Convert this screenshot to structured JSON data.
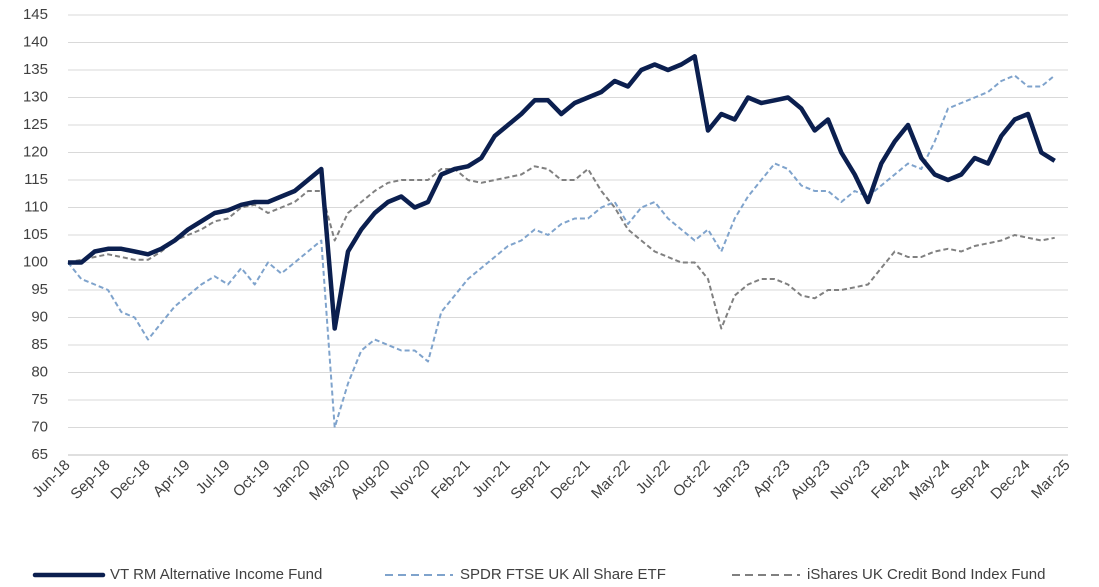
{
  "chart_data": {
    "type": "line",
    "categories": [
      "Jun-18",
      null,
      null,
      "Sep-18",
      null,
      null,
      "Dec-18",
      null,
      null,
      "Apr-19",
      null,
      null,
      "Jul-19",
      null,
      null,
      "Oct-19",
      null,
      null,
      "Jan-20",
      null,
      null,
      "May-20",
      null,
      null,
      "Aug-20",
      null,
      null,
      "Nov-20",
      null,
      null,
      "Feb-21",
      null,
      null,
      "Jun-21",
      null,
      null,
      "Sep-21",
      null,
      null,
      "Dec-21",
      null,
      null,
      "Mar-22",
      null,
      null,
      "Jul-22",
      null,
      null,
      "Oct-22",
      null,
      null,
      "Jan-23",
      null,
      null,
      "Apr-23",
      null,
      null,
      "Aug-23",
      null,
      null,
      "Nov-23",
      null,
      null,
      "Feb-24",
      null,
      null,
      "May-24",
      null,
      null,
      "Sep-24",
      null,
      null,
      "Dec-24",
      null,
      null,
      "Mar-25"
    ],
    "series": [
      {
        "name": "VT RM Alternative Income Fund",
        "color": "#0b1f4f",
        "style": "solid",
        "values": [
          100,
          100,
          102,
          102.5,
          102.5,
          102,
          101.5,
          102.5,
          104,
          106,
          107.5,
          109,
          109.5,
          110.5,
          111,
          111,
          112,
          113,
          115,
          117,
          88,
          102,
          106,
          109,
          111,
          112,
          110,
          111,
          116,
          117,
          117.5,
          119,
          123,
          125,
          127,
          129.5,
          129.5,
          127,
          129,
          130,
          131,
          133,
          132,
          135,
          136,
          135,
          136,
          137.5,
          124,
          127,
          126,
          130,
          129,
          129.5,
          130,
          128,
          124,
          126,
          120,
          116,
          111,
          118,
          122,
          125,
          119,
          116,
          115,
          116,
          119,
          118,
          123,
          126,
          127,
          120,
          118.5,
          null
        ]
      },
      {
        "name": "SPDR FTSE UK All Share ETF",
        "color": "#7fa3cc",
        "style": "dashed",
        "values": [
          100,
          97,
          96,
          95,
          91,
          90,
          86,
          89,
          92,
          94,
          96,
          97.5,
          96,
          99,
          96,
          100,
          98,
          100,
          102,
          104,
          70,
          78,
          84,
          86,
          85,
          84,
          84,
          82,
          91,
          94,
          97,
          99,
          101,
          103,
          104,
          106,
          105,
          107,
          108,
          108,
          110,
          111,
          107,
          110,
          111,
          108,
          106,
          104,
          106,
          102,
          108,
          112,
          115,
          118,
          117,
          114,
          113,
          113,
          111,
          113,
          112,
          114,
          116,
          118,
          117,
          122,
          128,
          129,
          130,
          131,
          133,
          134,
          132,
          132,
          134,
          null
        ]
      },
      {
        "name": "iShares UK Credit Bond Index Fund",
        "color": "#808080",
        "style": "dashed",
        "values": [
          100,
          100.5,
          101,
          101.5,
          101,
          100.5,
          100.5,
          102,
          104,
          105,
          106,
          107.5,
          108,
          110,
          110.5,
          109,
          110,
          111,
          113,
          113,
          104,
          109,
          111,
          113,
          114.5,
          115,
          115,
          115,
          117,
          117,
          115,
          114.5,
          115,
          115.5,
          116,
          117.5,
          117,
          115,
          115,
          117,
          113,
          110,
          106,
          104,
          102,
          101,
          100,
          100,
          97,
          88,
          94,
          96,
          97,
          97,
          96,
          94,
          93.5,
          95,
          95,
          95.5,
          96,
          99,
          102,
          101,
          101,
          102,
          102.5,
          102,
          103,
          103.5,
          104,
          105,
          104.5,
          104,
          104.5,
          null
        ]
      }
    ],
    "ylim": [
      65,
      145
    ],
    "yticks": [
      65,
      70,
      75,
      80,
      85,
      90,
      95,
      100,
      105,
      110,
      115,
      120,
      125,
      130,
      135,
      140,
      145
    ],
    "grid": true,
    "legend": "bottom"
  }
}
